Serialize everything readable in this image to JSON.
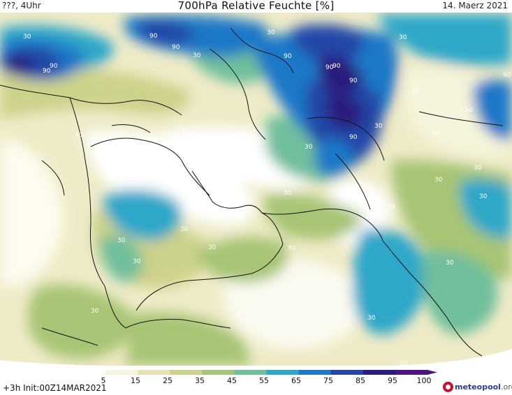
{
  "header": {
    "left": "???, 4Uhr",
    "title": "700hPa Relative Feuchte [%]",
    "right": "14. Maerz 2021"
  },
  "footer": {
    "left": "+3h  Init:00Z14MAR2021",
    "brand": "meteopool",
    "brand_tld": ".org"
  },
  "legend": {
    "labels": [
      "5",
      "15",
      "25",
      "35",
      "45",
      "55",
      "65",
      "75",
      "85",
      "95",
      "100"
    ],
    "colors": [
      "#ffffff",
      "#f6f4dc",
      "#e6e2b2",
      "#cdd28a",
      "#a7c575",
      "#6fbf9c",
      "#2fa7c9",
      "#1f78c8",
      "#2346a8",
      "#2a1c7e",
      "#4a1580"
    ]
  },
  "contour_labels": [
    "30",
    "90",
    "90",
    "90",
    "90",
    "30",
    "90",
    "90",
    "90",
    "30",
    "90",
    "90",
    "30",
    "30",
    "30",
    "90",
    "30",
    "30",
    "30",
    "30",
    "30",
    "30",
    "30",
    "30",
    "30",
    "30",
    "30",
    "30",
    "30",
    "30",
    "30",
    "30",
    "30",
    "30",
    "30",
    "30"
  ]
}
